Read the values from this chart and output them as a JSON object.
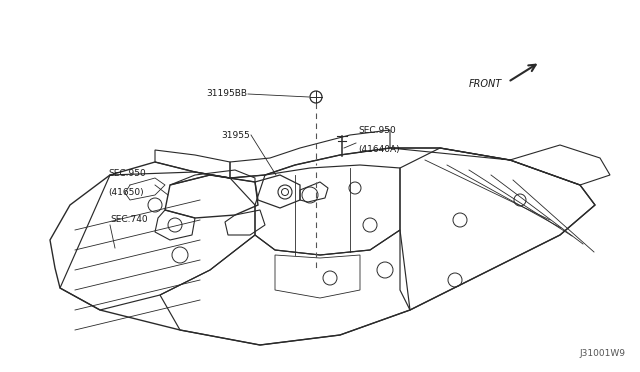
{
  "bg_color": "#f0f0f0",
  "fig_width": 6.4,
  "fig_height": 3.72,
  "dpi": 100,
  "watermark": "J31001W9",
  "line_color": "#2a2a2a",
  "text_color": "#1a1a1a",
  "text_size": 6.5,
  "labels": {
    "part1": "31195BB",
    "part2": "31955",
    "sec1_line1": "SEC.950",
    "sec1_line2": "(41650)",
    "sec2_line1": "SEC.950",
    "sec2_line2": "(41640A)",
    "sec3": "SEC.740",
    "front": "FRONT"
  },
  "img_bgcolor": "#ffffff"
}
